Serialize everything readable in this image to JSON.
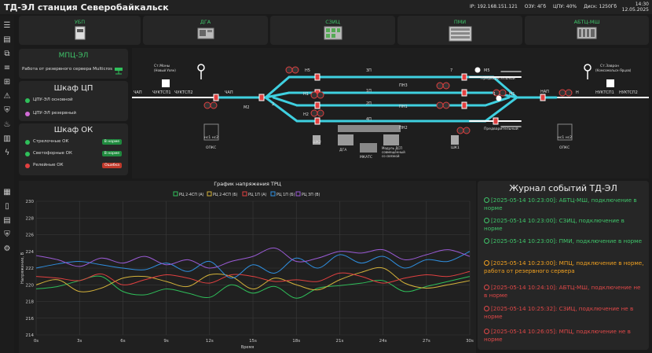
{
  "header": {
    "title": "ТД-ЭЛ станция Северобайкальск",
    "ip": "IP: 192.168.151.121",
    "ram": "ОЗУ: 4Гб",
    "cpu": "ЦПУ: 40%",
    "disk": "Диск: 1250Гб",
    "time": "14:30",
    "date": "12.05.2025"
  },
  "devices": [
    {
      "label": "УБП"
    },
    {
      "label": "ДГА"
    },
    {
      "label": "СЗИЦ"
    },
    {
      "label": "ПМИ"
    },
    {
      "label": "АБТЦ-МШ"
    }
  ],
  "mpc": {
    "title": "МПЦ-ЭЛ",
    "status": "Работа от резервного сервера Multicros"
  },
  "cp": {
    "title": "Шкаф ЦП",
    "rows": [
      {
        "label": "ЦПУ-ЭЛ основной",
        "color": "#2fbf5a"
      },
      {
        "label": "ЦПУ-ЭЛ резервный",
        "color": "#d16bd6"
      }
    ]
  },
  "ok": {
    "title": "Шкаф ОК",
    "rows": [
      {
        "label": "Стрелочные ОК",
        "badge": "В норме",
        "color": "#2fbf5a",
        "badge_color": "#1f8a3e"
      },
      {
        "label": "Светофорные ОК",
        "badge": "В норме",
        "color": "#2fbf5a",
        "badge_color": "#1f8a3e"
      },
      {
        "label": "Релейные ОК",
        "badge": "Ошибка",
        "color": "#e04040",
        "badge_color": "#c0392b"
      }
    ]
  },
  "scheme": {
    "left_station": "Ст.Моны (Новый Уоян)",
    "right_station": "Ст.Заврон (Комсомольск-Ярцов)",
    "track_labels": [
      "ЧАП",
      "ЧУКТСП1",
      "ЧУКТСП2",
      "ЧМ2",
      "ЧАП",
      "М2",
      "Н5",
      "Н1",
      "Н2",
      "НЗП",
      "3П",
      "1П",
      "2П",
      "4П",
      "НАП",
      "НУКТСП1",
      "НУКТСП2",
      "М1",
      "М5",
      "Н2",
      "Н",
      "1",
      "3",
      "5",
      "2",
      "4"
    ],
    "cabinets": [
      "ШК2",
      "ДГА",
      "МКАТС",
      "Модуль ДСП совмещённый со связкой",
      "ШК1",
      "ОПКС",
      "ОПКС"
    ],
    "headers": [
      "Предварительный",
      "Предварительный"
    ]
  },
  "chart_data": {
    "type": "line",
    "title": "График напряжения ТРЦ",
    "xlabel": "Время",
    "ylabel": "Напряжение, В",
    "ylim": [
      214,
      230
    ],
    "xlim": [
      0,
      30
    ],
    "x_ticks": [
      "0s",
      "3s",
      "6s",
      "9s",
      "12s",
      "15s",
      "18s",
      "21s",
      "24s",
      "27s",
      "30s"
    ],
    "y_ticks": [
      214,
      216,
      218,
      220,
      222,
      224,
      226,
      228,
      230
    ],
    "legend_position": "top",
    "grid": true,
    "x": [
      0,
      1.5,
      3,
      4.5,
      6,
      7.5,
      9,
      10.5,
      12,
      13.5,
      15,
      16.5,
      18,
      19.5,
      21,
      22.5,
      24,
      25.5,
      27,
      28.5,
      30
    ],
    "series": [
      {
        "name": "РЦ 2-4СП (А)",
        "color": "#2fbf5a",
        "values": [
          219.5,
          219.8,
          220.5,
          221.0,
          219.2,
          218.8,
          219.5,
          219.0,
          218.5,
          220.0,
          219.0,
          219.8,
          218.4,
          219.6,
          219.9,
          220.2,
          220.5,
          219.2,
          219.8,
          220.4,
          221.0
        ]
      },
      {
        "name": "РЦ 2-4СП (Б)",
        "color": "#d4b23a",
        "values": [
          220.0,
          220.6,
          219.2,
          219.6,
          220.8,
          221.0,
          220.4,
          219.8,
          221.2,
          221.0,
          219.5,
          220.8,
          220.0,
          219.4,
          220.6,
          221.5,
          222.0,
          220.2,
          219.6,
          220.0,
          220.5
        ]
      },
      {
        "name": "РЦ 1П (А)",
        "color": "#e04040",
        "values": [
          221.0,
          220.8,
          220.5,
          221.3,
          220.0,
          220.6,
          221.2,
          220.8,
          220.2,
          221.2,
          221.0,
          220.4,
          220.6,
          220.4,
          221.4,
          221.0,
          220.2,
          220.8,
          221.2,
          221.0,
          221.6
        ]
      },
      {
        "name": "РЦ 1П (Б)",
        "color": "#2f8fe0",
        "values": [
          222.0,
          222.5,
          222.8,
          222.4,
          222.0,
          221.8,
          222.6,
          221.6,
          222.8,
          220.8,
          222.4,
          221.4,
          223.2,
          222.0,
          223.6,
          222.6,
          223.4,
          222.0,
          223.0,
          222.8,
          224.0
        ]
      },
      {
        "name": "РЦ 3П (В)",
        "color": "#9b5bd6",
        "values": [
          223.5,
          223.0,
          222.2,
          223.2,
          222.6,
          223.4,
          222.4,
          223.0,
          222.0,
          222.8,
          223.4,
          224.4,
          222.8,
          223.2,
          224.0,
          223.8,
          224.2,
          223.0,
          223.6,
          224.2,
          223.4
        ]
      }
    ]
  },
  "journal": {
    "title": "Журнал событий ТД-ЭЛ",
    "entries": [
      {
        "text": "[2025-05-14 10:23:00]: АБТЦ-МШ, подключение в норме",
        "color": "#3fc46a"
      },
      {
        "text": "[2025-05-14 10:23:00]: СЗИЦ, подключение в норме",
        "color": "#3fc46a"
      },
      {
        "text": "[2025-05-14 10:23:00]: ПМИ, подключение в норме",
        "color": "#3fc46a"
      },
      {
        "text": "[2025-05-14 10:23:00]: МПЦ, подключение в норме, работа от резервного сервера",
        "color": "#f0a020"
      },
      {
        "text": "[2025-05-14 10:24:10]: АБТЦ-МШ, подключение не в норме",
        "color": "#e04848"
      },
      {
        "text": "[2025-05-14 10:25:32]: СЗИЦ, подключение не в норме",
        "color": "#e04848"
      },
      {
        "text": "[2025-05-14 10:26:05]: МПЦ, подключение не в норме",
        "color": "#e04848"
      }
    ]
  }
}
